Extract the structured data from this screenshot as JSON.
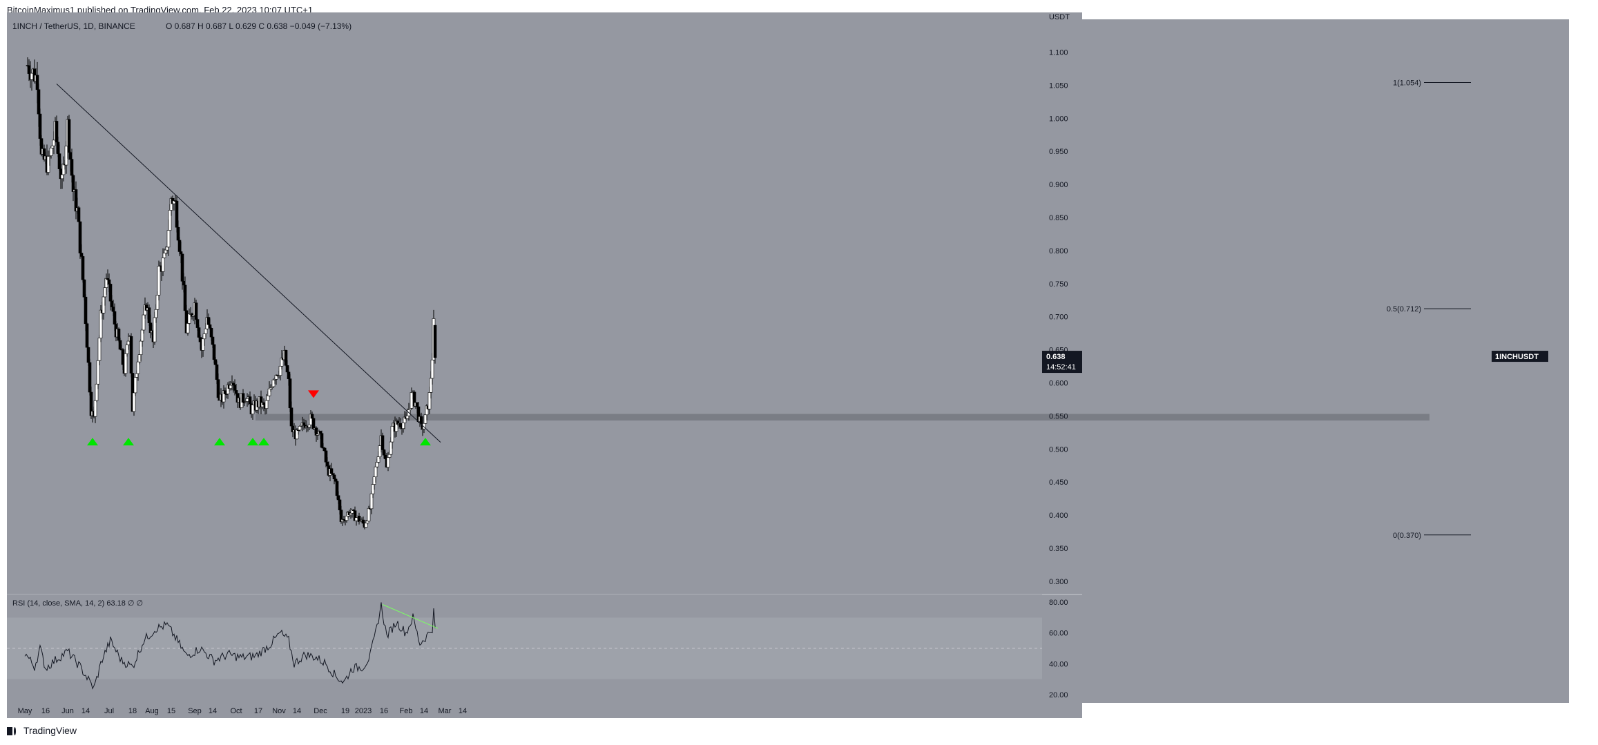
{
  "header": {
    "attribution": "BitcoinMaximus1 published on TradingView.com, Feb 22, 2023 10:07 UTC+1"
  },
  "footer": {
    "brand": "TradingView"
  },
  "legend": {
    "symbol": "1INCH / TetherUS, 1D, BINANCE",
    "ohlc": "O 0.687  H 0.687  L 0.629  C 0.638  −0.049 (−7.13%)"
  },
  "price_tag": {
    "symbol": "1INCHUSDT",
    "price": "0.638",
    "countdown": "14:52:41"
  },
  "fib_labels": [
    "1(1.054)",
    "0.5(0.712)",
    "0(0.370)"
  ],
  "rsi_legend": "RSI (14, close, SMA, 14, 2)  63.18  ∅  ∅",
  "colors": {
    "background": "#9598a1",
    "up": "#ffffff",
    "down": "#000000",
    "support_zone": "#777a82",
    "support_marker": "#00e600",
    "resistance_marker": "#ff0000",
    "rsi_band": "#a5a8b0",
    "rsi_divergence": "#7cff63"
  },
  "chart_data": {
    "type": "candlestick",
    "title": "1INCH / TetherUS, 1D, BINANCE",
    "currency": "USDT",
    "ylim": [
      0.28,
      1.16
    ],
    "y_ticks": [
      "1.100",
      "1.050",
      "1.000",
      "0.950",
      "0.900",
      "0.850",
      "0.800",
      "0.750",
      "0.700",
      "0.650",
      "0.600",
      "0.550",
      "0.500",
      "0.450",
      "0.400",
      "0.350",
      "0.300"
    ],
    "x_ticks": [
      "May",
      "16",
      "Jun",
      "14",
      "Jul",
      "18",
      "Aug",
      "15",
      "Sep",
      "14",
      "Oct",
      "17",
      "Nov",
      "14",
      "Dec",
      "19",
      "2023",
      "16",
      "Feb",
      "14",
      "Mar",
      "14"
    ],
    "anchors": [
      [
        "2022-05-03",
        1.08
      ],
      [
        "2022-05-10",
        1.06
      ],
      [
        "2022-05-13",
        0.94
      ],
      [
        "2022-05-18",
        0.93
      ],
      [
        "2022-05-23",
        0.98
      ],
      [
        "2022-05-28",
        0.9
      ],
      [
        "2022-06-01",
        0.99
      ],
      [
        "2022-06-05",
        0.89
      ],
      [
        "2022-06-08",
        0.86
      ],
      [
        "2022-06-13",
        0.73
      ],
      [
        "2022-06-18",
        0.56
      ],
      [
        "2022-06-20",
        0.545
      ],
      [
        "2022-06-25",
        0.7
      ],
      [
        "2022-06-29",
        0.76
      ],
      [
        "2022-07-05",
        0.69
      ],
      [
        "2022-07-12",
        0.62
      ],
      [
        "2022-07-16",
        0.68
      ],
      [
        "2022-07-18",
        0.56
      ],
      [
        "2022-07-22",
        0.64
      ],
      [
        "2022-07-28",
        0.72
      ],
      [
        "2022-08-02",
        0.66
      ],
      [
        "2022-08-06",
        0.77
      ],
      [
        "2022-08-11",
        0.79
      ],
      [
        "2022-08-15",
        0.88
      ],
      [
        "2022-08-18",
        0.87
      ],
      [
        "2022-08-22",
        0.79
      ],
      [
        "2022-08-26",
        0.68
      ],
      [
        "2022-09-01",
        0.72
      ],
      [
        "2022-09-06",
        0.65
      ],
      [
        "2022-09-10",
        0.7
      ],
      [
        "2022-09-15",
        0.64
      ],
      [
        "2022-09-19",
        0.57
      ],
      [
        "2022-09-22",
        0.58
      ],
      [
        "2022-09-28",
        0.61
      ],
      [
        "2022-10-03",
        0.57
      ],
      [
        "2022-10-08",
        0.58
      ],
      [
        "2022-10-12",
        0.56
      ],
      [
        "2022-10-18",
        0.57
      ],
      [
        "2022-10-22",
        0.56
      ],
      [
        "2022-10-28",
        0.61
      ],
      [
        "2022-11-01",
        0.62
      ],
      [
        "2022-11-05",
        0.64
      ],
      [
        "2022-11-08",
        0.6
      ],
      [
        "2022-11-10",
        0.53
      ],
      [
        "2022-11-14",
        0.52
      ],
      [
        "2022-11-20",
        0.54
      ],
      [
        "2022-11-24",
        0.545
      ],
      [
        "2022-11-28",
        0.53
      ],
      [
        "2022-12-02",
        0.51
      ],
      [
        "2022-12-06",
        0.47
      ],
      [
        "2022-12-12",
        0.45
      ],
      [
        "2022-12-16",
        0.39
      ],
      [
        "2022-12-22",
        0.405
      ],
      [
        "2022-12-28",
        0.395
      ],
      [
        "2023-01-02",
        0.385
      ],
      [
        "2023-01-06",
        0.41
      ],
      [
        "2023-01-10",
        0.47
      ],
      [
        "2023-01-14",
        0.52
      ],
      [
        "2023-01-18",
        0.47
      ],
      [
        "2023-01-22",
        0.53
      ],
      [
        "2023-01-27",
        0.54
      ],
      [
        "2023-02-01",
        0.54
      ],
      [
        "2023-02-05",
        0.58
      ],
      [
        "2023-02-08",
        0.57
      ],
      [
        "2023-02-12",
        0.53
      ],
      [
        "2023-02-15",
        0.545
      ],
      [
        "2023-02-18",
        0.58
      ],
      [
        "2023-02-20",
        0.64
      ],
      [
        "2023-02-21",
        0.687
      ],
      [
        "2023-02-22",
        0.638
      ]
    ],
    "last": {
      "open": 0.687,
      "high": 0.687,
      "low": 0.629,
      "close": 0.638
    },
    "trendline": [
      [
        "2022-05-24",
        1.052
      ],
      [
        "2023-02-26",
        0.51
      ]
    ],
    "support_zone": [
      0.543,
      0.553
    ],
    "fib_levels": [
      {
        "label": "1(1.054)",
        "value": 1.054
      },
      {
        "label": "0.5(0.712)",
        "value": 0.712
      },
      {
        "label": "0(0.370)",
        "value": 0.37
      }
    ],
    "support_bounces": [
      "2022-06-19",
      "2022-07-15",
      "2022-09-19",
      "2022-10-13",
      "2022-10-21",
      "2023-02-15"
    ],
    "resistance_marker": "2022-11-26",
    "rsi": {
      "period": 14,
      "ylim": [
        15,
        85
      ],
      "y_ticks": [
        "80.00",
        "60.00",
        "40.00",
        "20.00"
      ],
      "band": [
        30,
        70
      ],
      "midline": 50,
      "last": 63.18,
      "anchors": [
        [
          "2022-05-01",
          47
        ],
        [
          "2022-05-08",
          38
        ],
        [
          "2022-05-12",
          50
        ],
        [
          "2022-05-16",
          37
        ],
        [
          "2022-05-24",
          43
        ],
        [
          "2022-06-01",
          48
        ],
        [
          "2022-06-10",
          38
        ],
        [
          "2022-06-20",
          24
        ],
        [
          "2022-06-26",
          43
        ],
        [
          "2022-07-02",
          55
        ],
        [
          "2022-07-10",
          42
        ],
        [
          "2022-07-18",
          38
        ],
        [
          "2022-07-26",
          55
        ],
        [
          "2022-08-04",
          63
        ],
        [
          "2022-08-12",
          65
        ],
        [
          "2022-08-18",
          57
        ],
        [
          "2022-08-26",
          45
        ],
        [
          "2022-09-05",
          50
        ],
        [
          "2022-09-15",
          42
        ],
        [
          "2022-09-25",
          46
        ],
        [
          "2022-10-05",
          44
        ],
        [
          "2022-10-15",
          45
        ],
        [
          "2022-10-25",
          52
        ],
        [
          "2022-11-02",
          60
        ],
        [
          "2022-11-08",
          55
        ],
        [
          "2022-11-12",
          40
        ],
        [
          "2022-11-20",
          46
        ],
        [
          "2022-11-28",
          44
        ],
        [
          "2022-12-05",
          40
        ],
        [
          "2022-12-12",
          32
        ],
        [
          "2022-12-18",
          28
        ],
        [
          "2022-12-24",
          37
        ],
        [
          "2023-01-01",
          38
        ],
        [
          "2023-01-06",
          45
        ],
        [
          "2023-01-10",
          60
        ],
        [
          "2023-01-14",
          78
        ],
        [
          "2023-01-18",
          58
        ],
        [
          "2023-01-25",
          67
        ],
        [
          "2023-02-01",
          60
        ],
        [
          "2023-02-06",
          70
        ],
        [
          "2023-02-11",
          53
        ],
        [
          "2023-02-16",
          58
        ],
        [
          "2023-02-20",
          63
        ],
        [
          "2023-02-21",
          74
        ],
        [
          "2023-02-22",
          63.18
        ]
      ],
      "divergence": [
        [
          "2023-01-15",
          78.5
        ],
        [
          "2023-02-24",
          63
        ]
      ]
    }
  }
}
